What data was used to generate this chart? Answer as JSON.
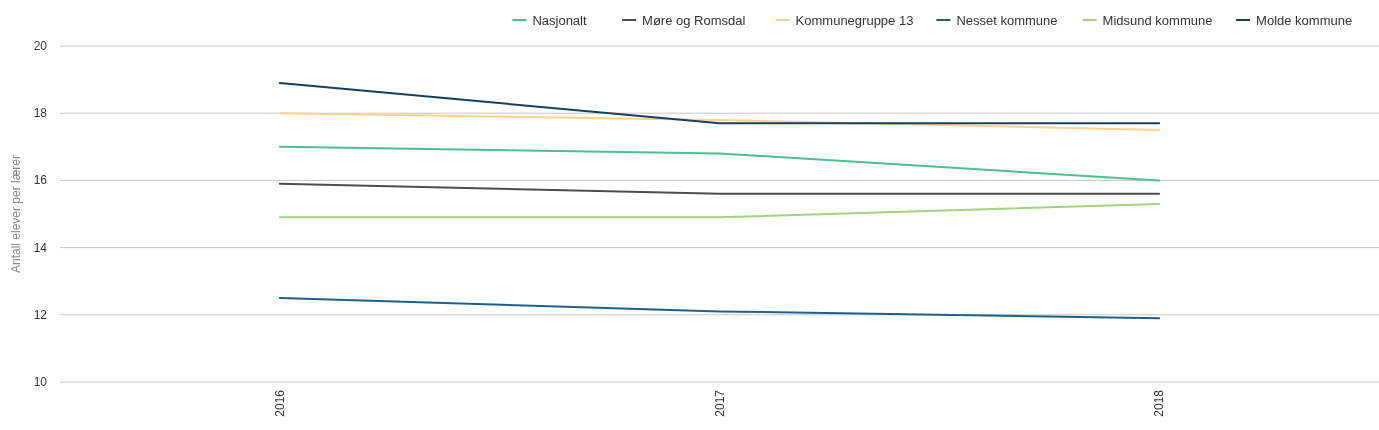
{
  "chart_data": {
    "type": "line",
    "ylabel": "Antall elever per lærer",
    "categories": [
      "2016",
      "2017",
      "2018"
    ],
    "series": [
      {
        "name": "Nasjonalt",
        "color": "#4cc18f",
        "values": [
          17.0,
          16.8,
          16.0
        ]
      },
      {
        "name": "Møre og Romsdal",
        "color": "#4d4d4d",
        "values": [
          15.9,
          15.6,
          15.6
        ]
      },
      {
        "name": "Kommunegruppe 13",
        "color": "#fcd38c",
        "values": [
          18.0,
          17.8,
          17.5
        ]
      },
      {
        "name": "Nesset kommune",
        "color": "#1f5f8c",
        "values": [
          12.5,
          12.1,
          11.9
        ]
      },
      {
        "name": "Midsund kommune",
        "color": "#a3d47f",
        "values": [
          14.9,
          14.9,
          15.3
        ]
      },
      {
        "name": "Molde kommune",
        "color": "#173f5f",
        "values": [
          18.9,
          17.7,
          17.7
        ]
      }
    ],
    "ylim": [
      10,
      20
    ],
    "yticks": [
      10,
      12,
      14,
      16,
      18,
      20
    ],
    "grid": "y",
    "legend": "top right",
    "marker": "none",
    "line_style": "solid"
  }
}
